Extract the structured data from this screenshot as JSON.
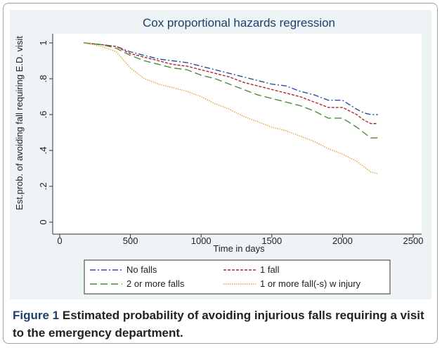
{
  "chart_data": {
    "type": "line",
    "title": "Cox proportional hazards regression",
    "x_label": "Time in days",
    "y_label": "Est.prob. of avoiding fall requiring E.D. visit",
    "x": [
      170,
      300,
      400,
      500,
      600,
      700,
      800,
      900,
      1000,
      1100,
      1200,
      1300,
      1400,
      1500,
      1600,
      1700,
      1800,
      1900,
      2000,
      2100,
      2150,
      2200,
      2250
    ],
    "series": [
      {
        "name": "No falls",
        "color": "#2a4f9e",
        "dash": "8 3 2 3",
        "values": [
          1,
          0.99,
          0.98,
          0.95,
          0.93,
          0.91,
          0.9,
          0.89,
          0.87,
          0.85,
          0.83,
          0.81,
          0.79,
          0.77,
          0.76,
          0.73,
          0.71,
          0.68,
          0.68,
          0.63,
          0.61,
          0.6,
          0.6
        ]
      },
      {
        "name": "1 fall",
        "color": "#b0282e",
        "dash": "4 2",
        "values": [
          1,
          0.99,
          0.98,
          0.94,
          0.92,
          0.9,
          0.88,
          0.87,
          0.85,
          0.83,
          0.81,
          0.78,
          0.76,
          0.74,
          0.72,
          0.7,
          0.67,
          0.64,
          0.64,
          0.6,
          0.57,
          0.55,
          0.55
        ]
      },
      {
        "name": "2 or more falls",
        "color": "#4d8a3a",
        "dash": "10 5",
        "values": [
          1,
          0.99,
          0.97,
          0.93,
          0.9,
          0.88,
          0.86,
          0.85,
          0.82,
          0.8,
          0.77,
          0.74,
          0.71,
          0.69,
          0.67,
          0.65,
          0.62,
          0.58,
          0.58,
          0.53,
          0.5,
          0.47,
          0.47
        ]
      },
      {
        "name": "1 or more fall(-s) w injury",
        "color": "#e8a33a",
        "dash": "1.5 1.5",
        "values": [
          1,
          0.98,
          0.95,
          0.86,
          0.8,
          0.77,
          0.75,
          0.73,
          0.7,
          0.66,
          0.63,
          0.59,
          0.56,
          0.53,
          0.51,
          0.48,
          0.45,
          0.41,
          0.38,
          0.34,
          0.31,
          0.28,
          0.27
        ]
      }
    ],
    "xlim": [
      0,
      2500
    ],
    "xticks": [
      0,
      500,
      1000,
      1500,
      2000,
      2500
    ],
    "ylim": [
      0,
      1
    ],
    "yticks": [
      0,
      {
        "value": 0.2,
        "label": ".2"
      },
      {
        "value": 0.4,
        "label": ".4"
      },
      {
        "value": 0.6,
        "label": ".6"
      },
      {
        "value": 0.8,
        "label": ".8"
      },
      1
    ]
  },
  "caption": {
    "label": "Figure 1",
    "text": "Estimated probability of avoiding injurious falls requiring a visit to the emergency department."
  }
}
